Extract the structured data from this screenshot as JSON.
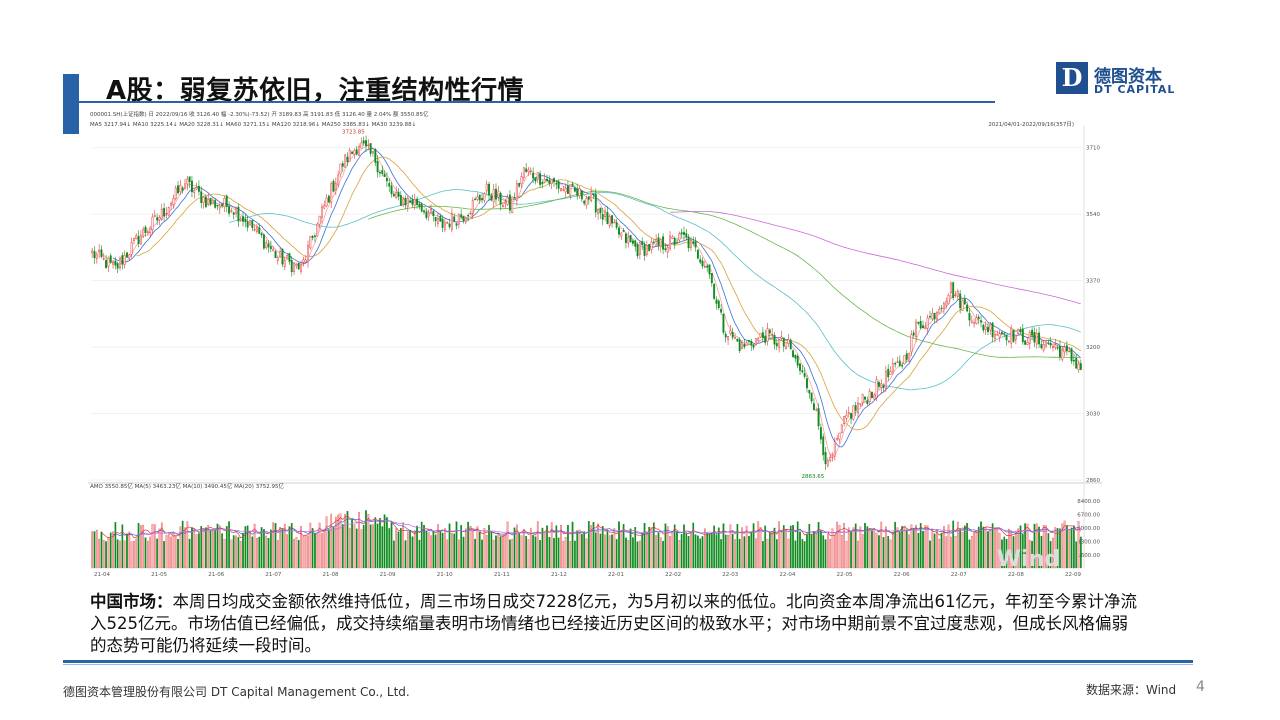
{
  "slide": {
    "title": "A股：弱复苏依旧，注重结构性行情",
    "page_number": "4"
  },
  "logo": {
    "name_cn": "德图资本",
    "name_en": "DT CAPITAL",
    "mark": "D",
    "color": "#1f4f8f"
  },
  "body": {
    "label": "中国市场：",
    "text": "本周日均成交金额依然维持低位，周三市场日成交7228亿元，为5月初以来的低位。北向资金本周净流出61亿元，年初至今累计净流入525亿元。市场估值已经偏低，成交持续缩量表明市场情绪也已经接近历史区间的极致水平；对市场中期前景不宜过度悲观，但成长风格偏弱的态势可能仍将延续一段时间。"
  },
  "footer": {
    "company": "德图资本管理股份有限公司  DT Capital Management  Co., Ltd.",
    "source": "数据来源：Wind"
  },
  "chart_data": {
    "type": "candlestick",
    "header_line": "000001.SH(上证指数)  日   2022/09/16   收 3126.40   幅 -2.30%(-73.52)   开 3189.83   高 3191.83   低 3126.40   量 2.04%   额 3550.85亿",
    "ma_line": "MA5 3217.94↓  MA10 3225.14↓  MA20 3228.31↓  MA60 3271.15↓  MA120 3218.96↓  MA250 3385.83↓  MA30 3239.88↓",
    "date_range": "2021/04/01-2022/09/16(357日)",
    "high_label": "3723.85",
    "low_label": "2863.65",
    "y_ticks": [
      "3710",
      "3540",
      "3370",
      "3200",
      "3030",
      "2860"
    ],
    "ylim": [
      2860,
      3740
    ],
    "x_labels": [
      "21-04",
      "21-05",
      "21-06",
      "21-07",
      "21-08",
      "21-09",
      "21-10",
      "21-11",
      "21-12",
      "22-01",
      "22-02",
      "22-03",
      "22-04",
      "22-05",
      "22-06",
      "22-07",
      "22-08",
      "22-09"
    ],
    "anchors": [
      [
        0,
        3440
      ],
      [
        10,
        3400
      ],
      [
        20,
        3480
      ],
      [
        30,
        3540
      ],
      [
        40,
        3620
      ],
      [
        50,
        3570
      ],
      [
        60,
        3560
      ],
      [
        70,
        3500
      ],
      [
        80,
        3430
      ],
      [
        90,
        3400
      ],
      [
        100,
        3560
      ],
      [
        108,
        3670
      ],
      [
        115,
        3720
      ],
      [
        122,
        3680
      ],
      [
        130,
        3580
      ],
      [
        140,
        3570
      ],
      [
        150,
        3510
      ],
      [
        160,
        3540
      ],
      [
        170,
        3600
      ],
      [
        180,
        3560
      ],
      [
        186,
        3650
      ],
      [
        195,
        3630
      ],
      [
        205,
        3600
      ],
      [
        215,
        3580
      ],
      [
        225,
        3500
      ],
      [
        235,
        3450
      ],
      [
        245,
        3460
      ],
      [
        255,
        3480
      ],
      [
        265,
        3410
      ],
      [
        272,
        3250
      ],
      [
        280,
        3200
      ],
      [
        290,
        3230
      ],
      [
        300,
        3200
      ],
      [
        310,
        3080
      ],
      [
        317,
        2890
      ],
      [
        325,
        3020
      ],
      [
        335,
        3080
      ],
      [
        342,
        3120
      ],
      [
        350,
        3170
      ],
      [
        355,
        3250
      ],
      [
        362,
        3280
      ],
      [
        370,
        3350
      ],
      [
        375,
        3310
      ],
      [
        382,
        3260
      ],
      [
        390,
        3240
      ],
      [
        398,
        3230
      ],
      [
        405,
        3220
      ],
      [
        412,
        3210
      ],
      [
        418,
        3190
      ],
      [
        426,
        3150
      ]
    ],
    "volume": {
      "header_line": "AMO 3550.85亿  MA(5) 3463.23亿  MA(10) 3490.45亿  MA(20) 3752.95亿",
      "y_ticks": [
        "8400.00",
        "6700.00",
        "5000.00",
        "3300.00",
        "1600.00"
      ],
      "ylim": [
        0,
        9000
      ]
    },
    "colors": {
      "up": "#e5383b",
      "up_fill": "#f6b5b5",
      "down": "#0f8a1e",
      "ma5": "#f7a3a3",
      "ma10": "#3b6fd6",
      "ma20": "#d9a23a",
      "ma60": "#5bc0c8",
      "ma120": "#69b84a",
      "ma250": "#c86bd6"
    },
    "watermark": "Wind"
  }
}
